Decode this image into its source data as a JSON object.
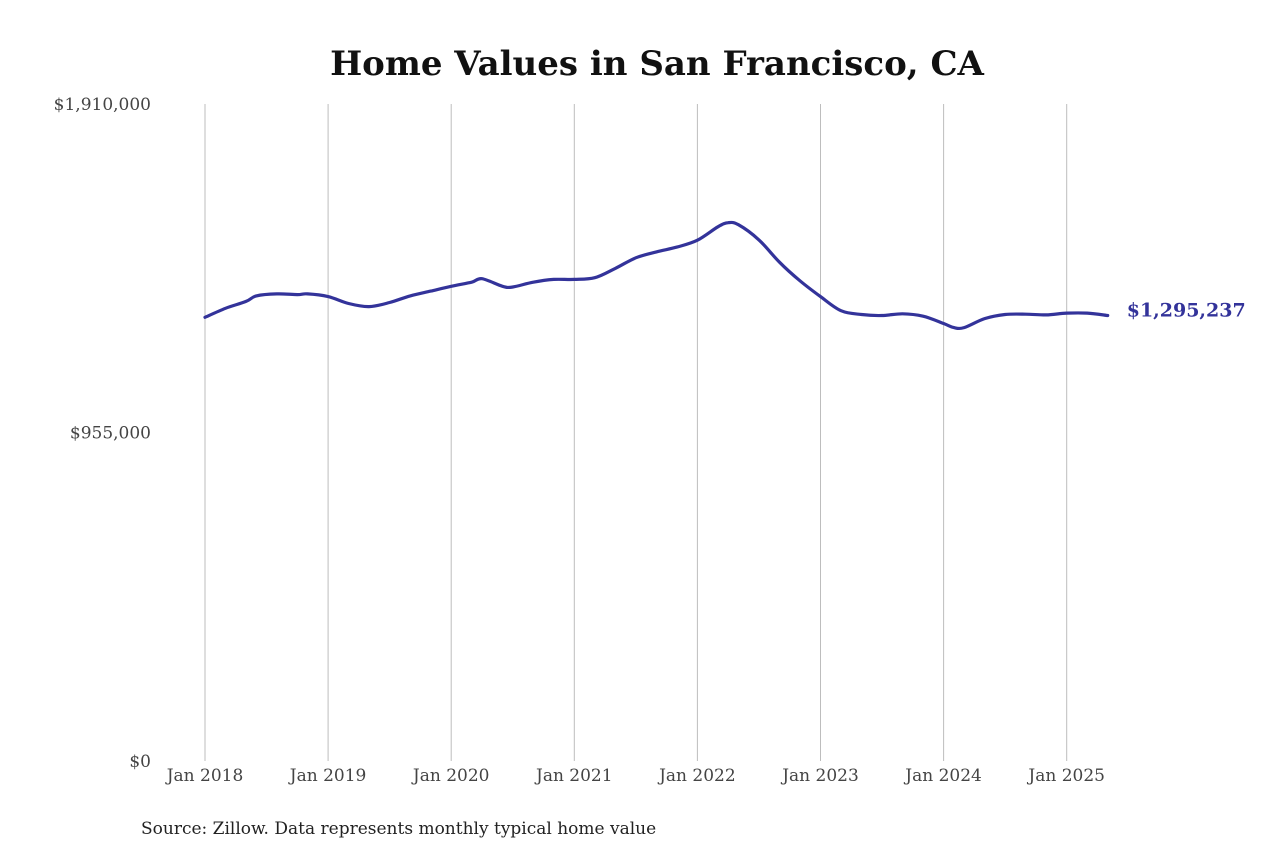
{
  "chart_data": {
    "type": "line",
    "title": "Home Values in San Francisco, CA",
    "xlabel": "",
    "ylabel": "",
    "x_ticks": [
      "Jan 2018",
      "Jan 2019",
      "Jan 2020",
      "Jan 2021",
      "Jan 2022",
      "Jan 2023",
      "Jan 2024",
      "Jan 2025"
    ],
    "y_ticks": [
      "$1,910,000",
      "$955,000",
      "$0"
    ],
    "ylim": [
      0,
      1910000
    ],
    "xlim": [
      "2018-01",
      "2025-12"
    ],
    "grid": "vertical",
    "legend": "none",
    "series": [
      {
        "color": "#33339a",
        "end_label": "$1,295,237",
        "x": [
          "2018-01",
          "2018-03",
          "2018-05",
          "2018-06",
          "2018-08",
          "2018-10",
          "2018-11",
          "2019-01",
          "2019-03",
          "2019-05",
          "2019-07",
          "2019-09",
          "2019-11",
          "2020-01",
          "2020-03",
          "2020-04",
          "2020-06",
          "2020-07",
          "2020-09",
          "2020-11",
          "2021-01",
          "2021-03",
          "2021-05",
          "2021-07",
          "2021-09",
          "2021-11",
          "2022-01",
          "2022-03",
          "2022-04",
          "2022-05",
          "2022-07",
          "2022-09",
          "2022-11",
          "2023-01",
          "2023-03",
          "2023-05",
          "2023-07",
          "2023-09",
          "2023-11",
          "2024-01",
          "2024-02",
          "2024-03",
          "2024-05",
          "2024-07",
          "2024-09",
          "2024-11",
          "2025-01",
          "2025-03",
          "2025-05"
        ],
        "values": [
          1290000,
          1316000,
          1336000,
          1352000,
          1358000,
          1356000,
          1358000,
          1350000,
          1330000,
          1321000,
          1333000,
          1352000,
          1366000,
          1380000,
          1392000,
          1402000,
          1380000,
          1378000,
          1392000,
          1400000,
          1400000,
          1405000,
          1432000,
          1463000,
          1480000,
          1494000,
          1514000,
          1553000,
          1565000,
          1559000,
          1515000,
          1450000,
          1396000,
          1350000,
          1309000,
          1298000,
          1295000,
          1300000,
          1293000,
          1272000,
          1260000,
          1260000,
          1286000,
          1298000,
          1299000,
          1297000,
          1302000,
          1302000,
          1295237
        ]
      }
    ]
  },
  "source": "Source: Zillow. Data represents monthly typical home value"
}
